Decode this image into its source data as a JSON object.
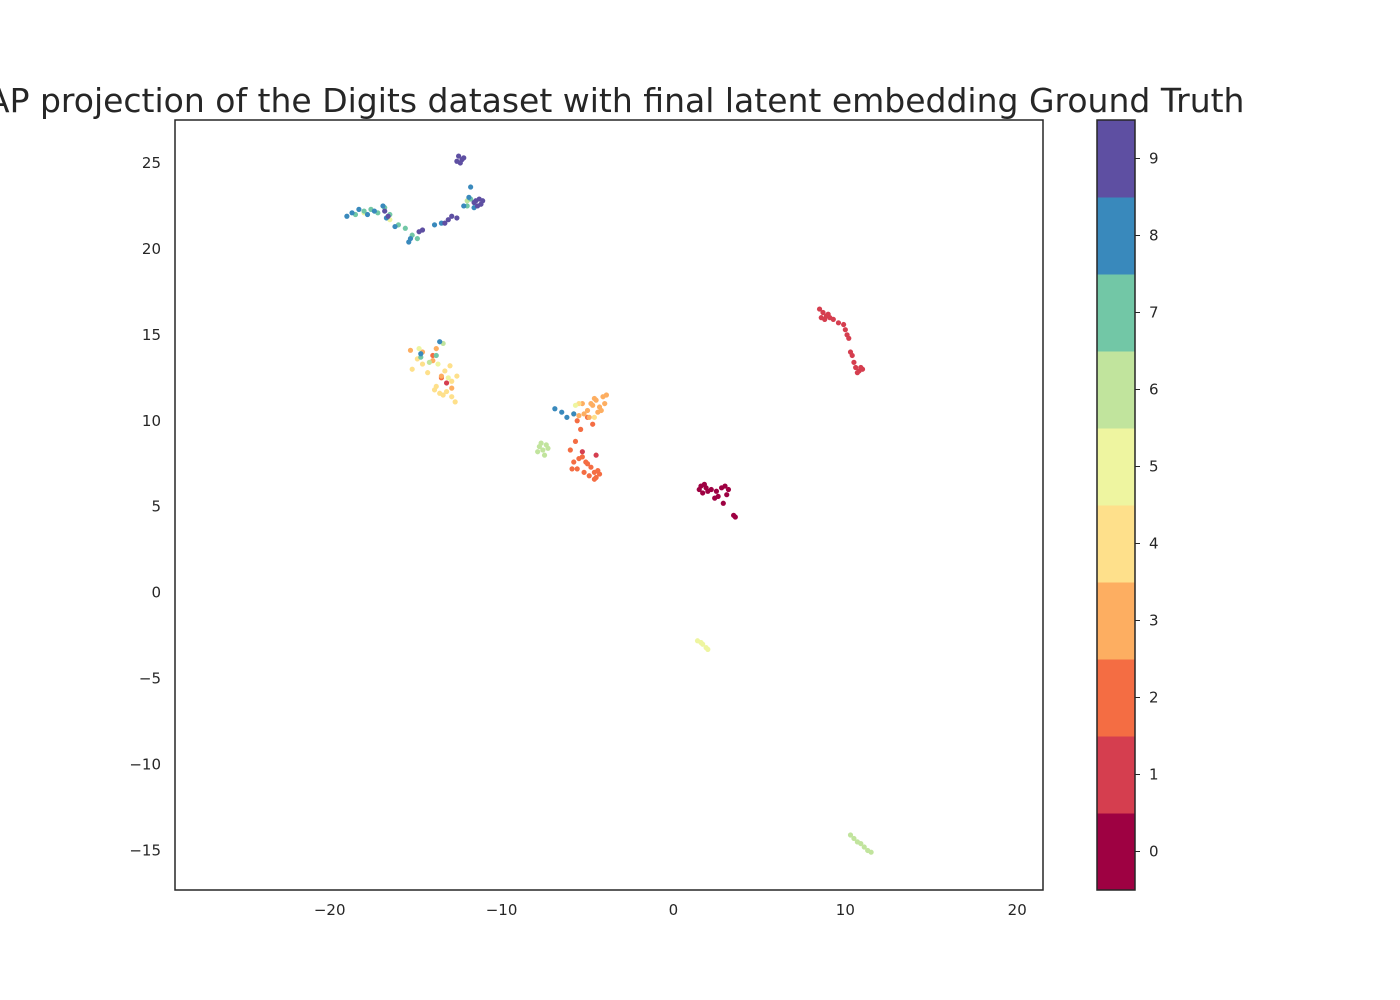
{
  "chart_data": {
    "type": "scatter",
    "title": "AP projection of the Digits dataset with final latent embedding Ground Truth",
    "xlabel": "",
    "ylabel": "",
    "xlim": [
      -29,
      21.5
    ],
    "ylim": [
      -17.3,
      27.5
    ],
    "x_ticks": [
      -20,
      -10,
      0,
      10,
      20
    ],
    "x_tick_labels": [
      "−20",
      "−10",
      "0",
      "10",
      "20"
    ],
    "y_ticks": [
      -15,
      -10,
      -5,
      0,
      5,
      10,
      15,
      20,
      25
    ],
    "y_tick_labels": [
      "−15",
      "−10",
      "−5",
      "0",
      "5",
      "10",
      "15",
      "20",
      "25"
    ],
    "grid": false,
    "colorbar": {
      "labels": [
        "0",
        "1",
        "2",
        "3",
        "4",
        "5",
        "6",
        "7",
        "8",
        "9"
      ],
      "colors": [
        "#9e0142",
        "#d53e4f",
        "#f46d43",
        "#fdae61",
        "#fee08b",
        "#eef5a0",
        "#c1e49d",
        "#72c7a6",
        "#3989bc",
        "#5e4fa2"
      ]
    },
    "clusters": [
      {
        "label": 0,
        "points": [
          [
            1.5,
            6.0
          ],
          [
            1.8,
            6.3
          ],
          [
            2.0,
            5.9
          ],
          [
            1.7,
            5.8
          ],
          [
            2.2,
            6.0
          ],
          [
            1.6,
            6.2
          ],
          [
            2.6,
            5.6
          ],
          [
            2.9,
            5.2
          ],
          [
            2.5,
            5.9
          ],
          [
            3.0,
            6.2
          ],
          [
            3.2,
            6.0
          ],
          [
            3.1,
            5.7
          ],
          [
            2.8,
            6.1
          ],
          [
            2.4,
            5.5
          ],
          [
            1.9,
            6.1
          ],
          [
            3.6,
            4.4
          ],
          [
            3.5,
            4.5
          ]
        ]
      },
      {
        "label": 1,
        "points": [
          [
            8.5,
            16.5
          ],
          [
            8.7,
            16.3
          ],
          [
            8.9,
            16.1
          ],
          [
            9.1,
            16.0
          ],
          [
            9.3,
            15.9
          ],
          [
            9.6,
            15.7
          ],
          [
            9.9,
            15.6
          ],
          [
            10.0,
            15.3
          ],
          [
            10.1,
            15.0
          ],
          [
            10.2,
            14.8
          ],
          [
            10.3,
            14.0
          ],
          [
            10.4,
            13.8
          ],
          [
            10.5,
            13.4
          ],
          [
            10.6,
            13.1
          ],
          [
            10.8,
            12.9
          ],
          [
            11.0,
            13.0
          ],
          [
            10.7,
            12.8
          ],
          [
            8.6,
            16.0
          ],
          [
            8.8,
            15.9
          ],
          [
            9.0,
            16.2
          ],
          [
            10.9,
            13.1
          ],
          [
            -5.3,
            8.2
          ],
          [
            -13.2,
            12.2
          ],
          [
            -4.5,
            8.0
          ]
        ]
      },
      {
        "label": 2,
        "points": [
          [
            -5.8,
            7.6
          ],
          [
            -5.6,
            7.2
          ],
          [
            -5.3,
            7.9
          ],
          [
            -5.0,
            7.5
          ],
          [
            -4.8,
            7.3
          ],
          [
            -4.6,
            7.0
          ],
          [
            -4.5,
            6.7
          ],
          [
            -4.4,
            7.1
          ],
          [
            -4.9,
            6.8
          ],
          [
            -5.2,
            7.0
          ],
          [
            -5.5,
            7.8
          ],
          [
            -5.9,
            7.2
          ],
          [
            -5.7,
            8.8
          ],
          [
            -5.4,
            9.5
          ],
          [
            -5.0,
            10.2
          ],
          [
            -4.7,
            9.8
          ],
          [
            -6.0,
            8.3
          ],
          [
            -4.6,
            6.6
          ],
          [
            -5.1,
            7.6
          ],
          [
            -4.3,
            6.9
          ],
          [
            -14.0,
            13.8
          ],
          [
            -13.5,
            12.5
          ],
          [
            -5.6,
            10.0
          ]
        ]
      },
      {
        "label": 3,
        "points": [
          [
            -5.0,
            10.6
          ],
          [
            -4.7,
            10.9
          ],
          [
            -4.5,
            11.2
          ],
          [
            -4.3,
            10.8
          ],
          [
            -4.1,
            11.4
          ],
          [
            -4.4,
            10.5
          ],
          [
            -4.8,
            11.0
          ],
          [
            -5.2,
            10.4
          ],
          [
            -5.5,
            10.3
          ],
          [
            -4.0,
            11.0
          ],
          [
            -4.6,
            11.3
          ],
          [
            -4.9,
            10.2
          ],
          [
            -4.2,
            10.6
          ],
          [
            -5.3,
            11.0
          ],
          [
            -3.9,
            11.5
          ],
          [
            -14.6,
            14.0
          ],
          [
            -13.8,
            14.2
          ],
          [
            -14.0,
            13.5
          ],
          [
            -12.9,
            11.9
          ],
          [
            -13.5,
            12.6
          ],
          [
            -15.3,
            14.1
          ]
        ]
      },
      {
        "label": 4,
        "points": [
          [
            -13.9,
            11.8
          ],
          [
            -13.6,
            11.6
          ],
          [
            -13.2,
            11.7
          ],
          [
            -12.9,
            11.4
          ],
          [
            -12.7,
            11.1
          ],
          [
            -12.6,
            12.6
          ],
          [
            -12.9,
            12.3
          ],
          [
            -13.3,
            12.9
          ],
          [
            -13.0,
            13.2
          ],
          [
            -13.8,
            12.0
          ],
          [
            -14.6,
            13.3
          ],
          [
            -14.9,
            13.6
          ],
          [
            -15.2,
            13.0
          ],
          [
            -14.3,
            12.8
          ],
          [
            -5.5,
            11.0
          ],
          [
            -5.8,
            10.4
          ],
          [
            -4.6,
            10.2
          ],
          [
            -13.4,
            11.5
          ]
        ]
      },
      {
        "label": 5,
        "points": [
          [
            1.4,
            -2.8
          ],
          [
            1.6,
            -2.9
          ],
          [
            1.7,
            -3.0
          ],
          [
            1.9,
            -3.2
          ],
          [
            2.0,
            -3.3
          ],
          [
            -5.7,
            10.9
          ],
          [
            -14.8,
            14.2
          ],
          [
            -13.7,
            13.3
          ],
          [
            -13.1,
            12.5
          ],
          [
            -18.0,
            22.1
          ],
          [
            -16.5,
            21.7
          ]
        ]
      },
      {
        "label": 6,
        "points": [
          [
            10.3,
            -14.1
          ],
          [
            10.5,
            -14.3
          ],
          [
            10.7,
            -14.5
          ],
          [
            10.9,
            -14.6
          ],
          [
            11.1,
            -14.8
          ],
          [
            11.3,
            -15.0
          ],
          [
            11.5,
            -15.1
          ],
          [
            -7.8,
            8.5
          ],
          [
            -7.6,
            8.3
          ],
          [
            -7.4,
            8.6
          ],
          [
            -7.5,
            8.0
          ],
          [
            -7.3,
            8.4
          ],
          [
            -7.9,
            8.2
          ],
          [
            -7.7,
            8.7
          ],
          [
            -14.2,
            13.4
          ],
          [
            -13.4,
            14.5
          ],
          [
            -12.0,
            22.8
          ]
        ]
      },
      {
        "label": 7,
        "points": [
          [
            -18.5,
            22.0
          ],
          [
            -18.0,
            22.2
          ],
          [
            -17.6,
            22.3
          ],
          [
            -17.2,
            22.1
          ],
          [
            -16.8,
            22.4
          ],
          [
            -16.5,
            22.0
          ],
          [
            -16.0,
            21.4
          ],
          [
            -15.6,
            21.2
          ],
          [
            -15.2,
            20.8
          ],
          [
            -14.9,
            20.6
          ],
          [
            -12.0,
            22.5
          ],
          [
            -11.8,
            22.9
          ],
          [
            -13.8,
            13.8
          ],
          [
            -14.7,
            13.7
          ]
        ]
      },
      {
        "label": 8,
        "points": [
          [
            -19.0,
            21.9
          ],
          [
            -18.7,
            22.1
          ],
          [
            -18.3,
            22.3
          ],
          [
            -17.8,
            22.0
          ],
          [
            -17.4,
            22.2
          ],
          [
            -16.9,
            22.5
          ],
          [
            -16.7,
            21.8
          ],
          [
            -16.2,
            21.3
          ],
          [
            -15.4,
            20.4
          ],
          [
            -15.3,
            20.6
          ],
          [
            -13.5,
            21.5
          ],
          [
            -13.9,
            21.4
          ],
          [
            -12.2,
            22.5
          ],
          [
            -11.9,
            23.0
          ],
          [
            -11.8,
            23.6
          ],
          [
            -11.6,
            22.4
          ],
          [
            -6.9,
            10.7
          ],
          [
            -6.5,
            10.5
          ],
          [
            -6.2,
            10.2
          ],
          [
            -5.8,
            10.4
          ],
          [
            -13.6,
            14.6
          ],
          [
            -14.7,
            13.9
          ]
        ]
      },
      {
        "label": 9,
        "points": [
          [
            -12.5,
            25.4
          ],
          [
            -12.3,
            25.2
          ],
          [
            -12.4,
            25.0
          ],
          [
            -12.2,
            25.3
          ],
          [
            -12.6,
            25.1
          ],
          [
            -11.5,
            22.8
          ],
          [
            -11.3,
            22.9
          ],
          [
            -11.2,
            22.6
          ],
          [
            -11.4,
            22.5
          ],
          [
            -11.6,
            22.7
          ],
          [
            -11.1,
            22.8
          ],
          [
            -12.6,
            21.8
          ],
          [
            -12.9,
            21.9
          ],
          [
            -13.1,
            21.7
          ],
          [
            -13.3,
            21.5
          ],
          [
            -14.6,
            21.1
          ],
          [
            -14.8,
            21.0
          ],
          [
            -16.8,
            22.2
          ],
          [
            -16.6,
            21.9
          ]
        ]
      }
    ]
  }
}
